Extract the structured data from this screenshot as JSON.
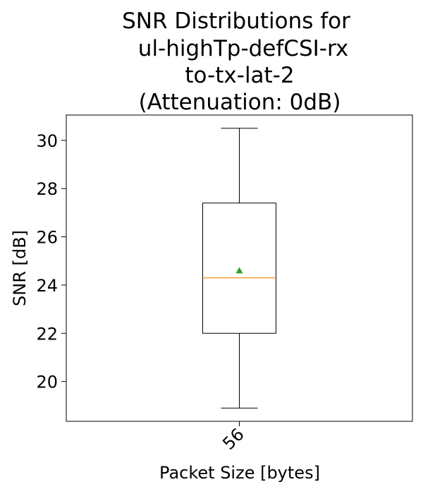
{
  "chart_data": {
    "type": "box",
    "title_lines": [
      "SNR Distributions for",
      "ul-highTp-defCSI-rx",
      "to-tx-lat-2",
      "(Attenuation: 0dB)"
    ],
    "xlabel": "Packet Size [bytes]",
    "ylabel": "SNR [dB]",
    "categories": [
      "56"
    ],
    "boxes": [
      {
        "category": "56",
        "whisker_low": 18.9,
        "q1": 22.0,
        "median": 24.3,
        "q3": 27.4,
        "whisker_high": 30.5,
        "mean": 24.6
      }
    ],
    "y_ticks": [
      20,
      22,
      24,
      26,
      28,
      30
    ],
    "ylim": [
      18.35,
      31.05
    ],
    "grid": false,
    "legend": "none",
    "colors": {
      "box": "#000000",
      "median": "#ff7f0e",
      "mean_marker": "#2ca02c"
    }
  }
}
